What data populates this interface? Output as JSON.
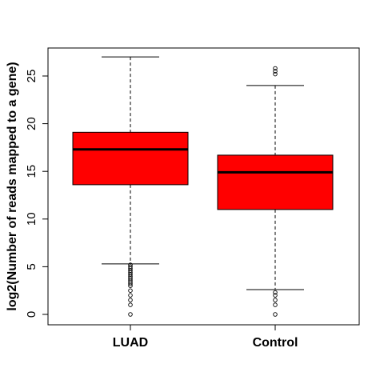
{
  "chart_data": {
    "type": "boxplot",
    "title": "",
    "xlabel": "",
    "ylabel": "log2(Number of reads mapped to a gene)",
    "ylim": [
      -1.2,
      28
    ],
    "yticks": [
      0,
      5,
      10,
      15,
      20,
      25
    ],
    "grid": false,
    "box_color": "#ff0000",
    "line_color": "#000000",
    "categories": [
      "LUAD",
      "Control"
    ],
    "boxes": [
      {
        "category": "LUAD",
        "whisker_low": 5.3,
        "q1": 13.6,
        "median": 17.3,
        "q3": 19.1,
        "whisker_high": 27.0,
        "outliers": [
          0.0,
          1.0,
          1.5,
          2.0,
          2.5,
          3.0,
          3.2,
          3.4,
          3.6,
          3.8,
          4.0,
          4.2,
          4.4,
          4.6,
          4.8,
          5.0,
          5.2
        ]
      },
      {
        "category": "Control",
        "whisker_low": 2.6,
        "q1": 11.0,
        "median": 14.9,
        "q3": 16.7,
        "whisker_high": 24.0,
        "outliers": [
          0.0,
          1.0,
          1.5,
          2.0,
          2.3,
          25.2,
          25.5,
          25.8
        ]
      }
    ]
  }
}
